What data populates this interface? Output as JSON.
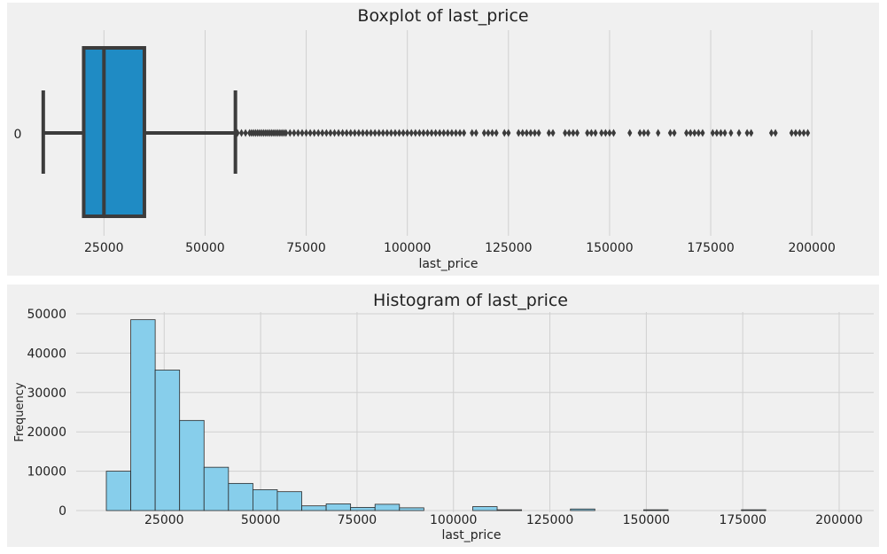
{
  "chart_data": [
    {
      "type": "boxplot",
      "title": "Boxplot of last_price",
      "xlabel": "last_price",
      "ylabel": "",
      "category_label": "0",
      "xlim": [
        5000,
        205000
      ],
      "xticks": [
        25000,
        50000,
        75000,
        100000,
        125000,
        150000,
        175000,
        200000
      ],
      "tick_labels": [
        "25000",
        "50000",
        "75000",
        "100000",
        "125000",
        "150000",
        "175000",
        "200000"
      ],
      "grid": true,
      "colors": {
        "box": "#1f8bc4",
        "line": "#3c3c3c",
        "background": "#f0f0f0",
        "grid": "#d0d0d0"
      },
      "box": {
        "whisker_low": 10000,
        "q1": 20000,
        "median": 25000,
        "q3": 35000,
        "whisker_high": 57500
      },
      "outliers": [
        58000,
        59000,
        60000,
        61000,
        61500,
        62000,
        62500,
        63000,
        63500,
        64000,
        64500,
        65000,
        65500,
        66000,
        66500,
        67000,
        67500,
        68000,
        68500,
        69000,
        69500,
        70000,
        71000,
        72000,
        73000,
        74000,
        75000,
        76000,
        77000,
        78000,
        79000,
        80000,
        81000,
        82000,
        83000,
        84000,
        85000,
        86000,
        87000,
        88000,
        89000,
        90000,
        91000,
        92000,
        93000,
        94000,
        95000,
        96000,
        97000,
        98000,
        99000,
        100000,
        101000,
        102000,
        103000,
        104000,
        105000,
        106000,
        107000,
        108000,
        109000,
        110000,
        111000,
        112000,
        113000,
        114000,
        116000,
        117000,
        119000,
        120000,
        121000,
        122000,
        124000,
        125000,
        127500,
        128500,
        129500,
        130500,
        131500,
        132500,
        135000,
        136000,
        139000,
        140000,
        141000,
        142000,
        144500,
        145500,
        146500,
        148000,
        149000,
        150000,
        151000,
        155000,
        157500,
        158500,
        159500,
        162000,
        165000,
        166000,
        169000,
        170000,
        171000,
        172000,
        173000,
        175500,
        176500,
        177500,
        178500,
        180000,
        182000,
        184000,
        185000,
        190000,
        191000,
        195000,
        196000,
        197000,
        198000,
        199000
      ]
    },
    {
      "type": "histogram",
      "title": "Histogram of last_price",
      "xlabel": "last_price",
      "ylabel": "Frequency",
      "xlim": [
        5000,
        205000
      ],
      "ylim": [
        0,
        50000
      ],
      "xticks": [
        25000,
        50000,
        75000,
        100000,
        125000,
        150000,
        175000,
        200000
      ],
      "xtick_labels": [
        "25000",
        "50000",
        "75000",
        "100000",
        "125000",
        "150000",
        "175000",
        "200000"
      ],
      "yticks": [
        0,
        10000,
        20000,
        30000,
        40000,
        50000
      ],
      "ytick_labels": [
        "0",
        "10000",
        "20000",
        "30000",
        "40000",
        "50000"
      ],
      "grid": true,
      "colors": {
        "bar": "#87ceeb",
        "edge": "#2a2a2a",
        "background": "#f0f0f0",
        "grid": "#d0d0d0"
      },
      "bin_start": 10000,
      "bin_width": 6333,
      "counts": [
        10000,
        48500,
        35700,
        22900,
        11000,
        6900,
        5300,
        4800,
        1200,
        1700,
        800,
        1600,
        700,
        0,
        0,
        1000,
        200,
        0,
        0,
        400,
        0,
        0,
        200,
        0,
        0,
        0,
        200,
        0,
        0,
        0
      ]
    }
  ]
}
